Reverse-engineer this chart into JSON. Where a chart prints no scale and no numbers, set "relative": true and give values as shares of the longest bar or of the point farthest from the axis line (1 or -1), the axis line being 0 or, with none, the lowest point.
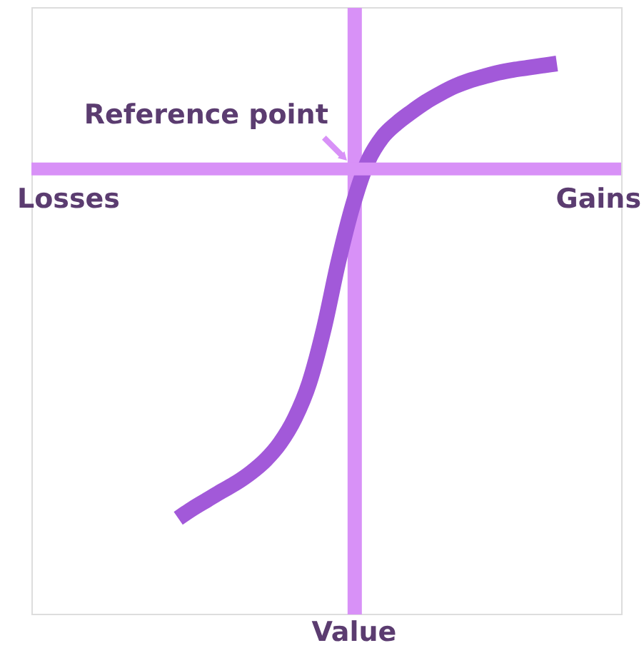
{
  "chart_data": {
    "type": "line",
    "relative": true,
    "categories": [
      null,
      null,
      null,
      null,
      null,
      null,
      null,
      null,
      null,
      null,
      null,
      null,
      null,
      null,
      null,
      null,
      null,
      null,
      null,
      null,
      null,
      null,
      null,
      null,
      null,
      null,
      null
    ],
    "color": "#a259d9",
    "values": [
      -1,
      -0.972,
      -0.947,
      -0.922,
      -0.898,
      -0.869,
      -0.833,
      -0.784,
      -0.714,
      -0.612,
      -0.457,
      -0.265,
      -0.102,
      0.02,
      0.09,
      0.131,
      0.163,
      0.192,
      0.216,
      0.237,
      0.253,
      0.265,
      0.276,
      0.284,
      0.29,
      0.296,
      0.302
    ],
    "ref_lines": [
      {
        "axis": "y",
        "value": 0,
        "color": "#d891f7"
      }
    ],
    "annotations": [
      "Losses",
      "Gains",
      "Reference point",
      "Value"
    ]
  }
}
